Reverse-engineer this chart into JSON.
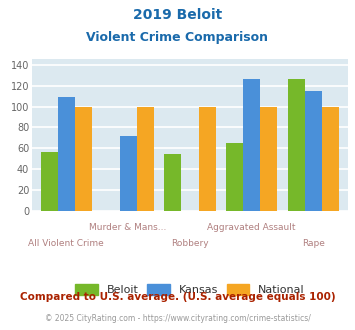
{
  "title_line1": "2019 Beloit",
  "title_line2": "Violent Crime Comparison",
  "categories": [
    "All Violent Crime",
    "Murder & Mans...",
    "Robbery",
    "Aggravated Assault",
    "Rape"
  ],
  "series": {
    "Beloit": [
      57,
      null,
      55,
      65,
      126
    ],
    "Kansas": [
      109,
      72,
      null,
      126,
      115
    ],
    "National": [
      100,
      100,
      100,
      100,
      100
    ]
  },
  "colors": {
    "Beloit": "#76b82a",
    "Kansas": "#4a90d9",
    "National": "#f5a623"
  },
  "ylim": [
    0,
    145
  ],
  "yticks": [
    0,
    20,
    40,
    60,
    80,
    100,
    120,
    140
  ],
  "footnote": "Compared to U.S. average. (U.S. average equals 100)",
  "credit_prefix": "© 2025 CityRating.com - ",
  "credit_link": "https://www.cityrating.com/crime-statistics/",
  "bg_color": "#dce9f0",
  "grid_color": "#ffffff",
  "title_color": "#1a6aab",
  "footnote_color": "#aa2200",
  "credit_color": "#999999",
  "link_color": "#4a90d9",
  "xlabel_upper_color": "#b08080",
  "xlabel_lower_color": "#b08080"
}
